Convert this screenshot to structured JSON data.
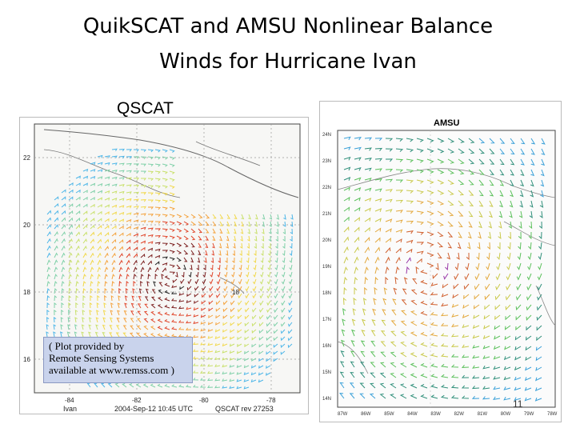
{
  "title": {
    "line1": "QuikSCAT and AMSU Nonlinear Balance",
    "line2": "Winds for Hurricane Ivan"
  },
  "qscat": {
    "label": "QSCAT",
    "lat_ticks": [
      "22",
      "20",
      "18",
      "16"
    ],
    "lon_ticks": [
      "-84",
      "-82",
      "-80",
      "-78"
    ],
    "inner_label": "18",
    "footer_left": "Ivan",
    "footer_date": "2004-Sep-12   10:45 UTC",
    "footer_rev": "QSCAT rev 27253",
    "credit_lines": [
      "( Plot provided by",
      "Remote Sensing Systems",
      "available at www.remss.com )"
    ],
    "center": {
      "lat": 18.5,
      "lon": -81.0
    }
  },
  "amsu": {
    "title": "AMSU",
    "lat_ticks": [
      "24N",
      "23N",
      "22N",
      "21N",
      "20N",
      "19N",
      "18N",
      "17N",
      "16N",
      "15N",
      "14N"
    ],
    "lon_ticks": [
      "87W",
      "86W",
      "85W",
      "84W",
      "83W",
      "82W",
      "81W",
      "80W",
      "79W",
      "78W"
    ],
    "center": {
      "lat": 19.0,
      "lon": -83.5
    }
  },
  "page_number": "11"
}
